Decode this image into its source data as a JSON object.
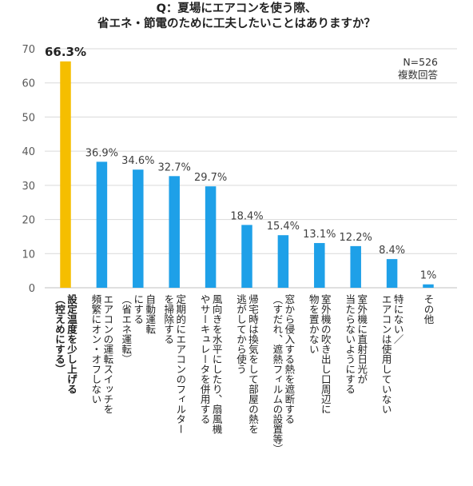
{
  "title": [
    "Q：夏場にエアコンを使う際、",
    "省エネ・節電のために工夫したいことはありますか？"
  ],
  "note": [
    "N=526",
    "複数回答"
  ],
  "colors": {
    "highlight": "#F5BE00",
    "bar": "#1EA0E8",
    "grid": "#D9D9D9",
    "axis_text": "#595959"
  },
  "chart_data": {
    "type": "bar",
    "title": "Q：夏場にエアコンを使う際、省エネ・節電のために工夫したいことはありますか？",
    "ylim": [
      0,
      70
    ],
    "yticks": [
      0,
      10,
      20,
      30,
      40,
      50,
      60,
      70
    ],
    "grid": true,
    "categories": [
      [
        "設定温度を少し上げる",
        "（控えめにする）"
      ],
      [
        "エアコンの運転スイッチを",
        "頻繁にオン・オフしない"
      ],
      [
        "自動運転",
        "にする",
        "（省エネ運転）"
      ],
      [
        "定期的にエアコンのフィルター",
        "を掃除する"
      ],
      [
        "風向きを水平にしたり、扇風機",
        "やサーキュレータを併用する"
      ],
      [
        "帰宅時は換気をして部屋の熱を",
        "逃がしてから使う"
      ],
      [
        "窓から侵入する熱を遮断する",
        "（すだれ、遮熱フィルムの設置等）"
      ],
      [
        "室外機の吹き出し口周辺に",
        "物を置かない"
      ],
      [
        "室外機に直射日光が",
        "当たらないようにする"
      ],
      [
        "特にない／",
        "エアコンは使用していない"
      ],
      [
        "その他"
      ]
    ],
    "values": [
      66.3,
      36.9,
      34.6,
      32.7,
      29.7,
      18.4,
      15.4,
      13.1,
      12.2,
      8.4,
      1
    ],
    "labels": [
      "66.3%",
      "36.9%",
      "34.6%",
      "32.7%",
      "29.7%",
      "18.4%",
      "15.4%",
      "13.1%",
      "12.2%",
      "8.4%",
      "1%"
    ],
    "highlight_index": 0
  }
}
